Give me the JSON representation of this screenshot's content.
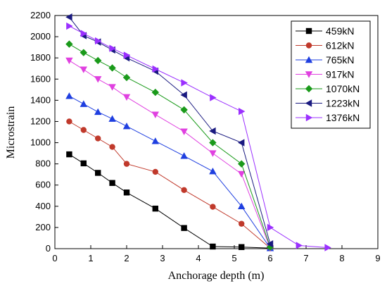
{
  "chart_data": {
    "type": "line",
    "title": "",
    "xlabel": "Anchorage depth (m)",
    "ylabel": "Microstrain",
    "xlim": [
      0,
      9
    ],
    "ylim": [
      0,
      2200
    ],
    "xticks": [
      0,
      1,
      2,
      3,
      4,
      5,
      6,
      7,
      8,
      9
    ],
    "yticks": [
      0,
      200,
      400,
      600,
      800,
      1000,
      1200,
      1400,
      1600,
      1800,
      2000,
      2200
    ],
    "grid": false,
    "legend_position": "top-right",
    "series": [
      {
        "name": "459kN",
        "color": "#000000",
        "marker": "square",
        "points": [
          [
            0.4,
            890
          ],
          [
            0.8,
            805
          ],
          [
            1.2,
            715
          ],
          [
            1.6,
            620
          ],
          [
            2.0,
            530
          ],
          [
            2.8,
            378
          ],
          [
            3.6,
            195
          ],
          [
            4.4,
            20
          ],
          [
            5.2,
            15
          ],
          [
            6.0,
            5
          ]
        ]
      },
      {
        "name": "612kN",
        "color": "#c0392b",
        "marker": "circle",
        "points": [
          [
            0.4,
            1200
          ],
          [
            0.8,
            1120
          ],
          [
            1.2,
            1040
          ],
          [
            1.6,
            960
          ],
          [
            2.0,
            800
          ],
          [
            2.8,
            725
          ],
          [
            3.6,
            553
          ],
          [
            4.4,
            395
          ],
          [
            5.2,
            235
          ],
          [
            6.0,
            5
          ]
        ]
      },
      {
        "name": "765kN",
        "color": "#1f3fe0",
        "marker": "triangle-up",
        "points": [
          [
            0.4,
            1440
          ],
          [
            0.8,
            1365
          ],
          [
            1.2,
            1290
          ],
          [
            1.6,
            1225
          ],
          [
            2.0,
            1155
          ],
          [
            2.8,
            1015
          ],
          [
            3.6,
            875
          ],
          [
            4.4,
            730
          ],
          [
            5.2,
            400
          ],
          [
            6.0,
            5
          ]
        ]
      },
      {
        "name": "917kN",
        "color": "#e040e0",
        "marker": "triangle-down",
        "points": [
          [
            0.4,
            1775
          ],
          [
            0.8,
            1690
          ],
          [
            1.2,
            1600
          ],
          [
            1.6,
            1525
          ],
          [
            2.0,
            1430
          ],
          [
            2.8,
            1265
          ],
          [
            3.6,
            1105
          ],
          [
            4.4,
            900
          ],
          [
            5.2,
            705
          ],
          [
            6.0,
            5
          ]
        ]
      },
      {
        "name": "1070kN",
        "color": "#1a9a1a",
        "marker": "diamond",
        "points": [
          [
            0.4,
            1930
          ],
          [
            0.8,
            1850
          ],
          [
            1.2,
            1775
          ],
          [
            1.6,
            1705
          ],
          [
            2.0,
            1615
          ],
          [
            2.8,
            1475
          ],
          [
            3.6,
            1310
          ],
          [
            4.4,
            1000
          ],
          [
            5.2,
            800
          ],
          [
            6.0,
            15
          ]
        ]
      },
      {
        "name": "1223kN",
        "color": "#1a1a80",
        "marker": "triangle-left",
        "points": [
          [
            0.4,
            2185
          ],
          [
            0.8,
            2010
          ],
          [
            1.2,
            1950
          ],
          [
            1.6,
            1875
          ],
          [
            2.0,
            1800
          ],
          [
            2.8,
            1675
          ],
          [
            3.6,
            1450
          ],
          [
            4.4,
            1110
          ],
          [
            5.2,
            1000
          ],
          [
            6.0,
            45
          ]
        ]
      },
      {
        "name": "1376kN",
        "color": "#9b30ff",
        "marker": "triangle-right",
        "points": [
          [
            0.4,
            2100
          ],
          [
            0.8,
            2030
          ],
          [
            1.2,
            1960
          ],
          [
            1.6,
            1890
          ],
          [
            2.0,
            1825
          ],
          [
            2.8,
            1695
          ],
          [
            3.6,
            1565
          ],
          [
            4.4,
            1425
          ],
          [
            5.2,
            1295
          ],
          [
            6.0,
            200
          ],
          [
            6.8,
            30
          ],
          [
            7.6,
            10
          ]
        ]
      }
    ]
  }
}
